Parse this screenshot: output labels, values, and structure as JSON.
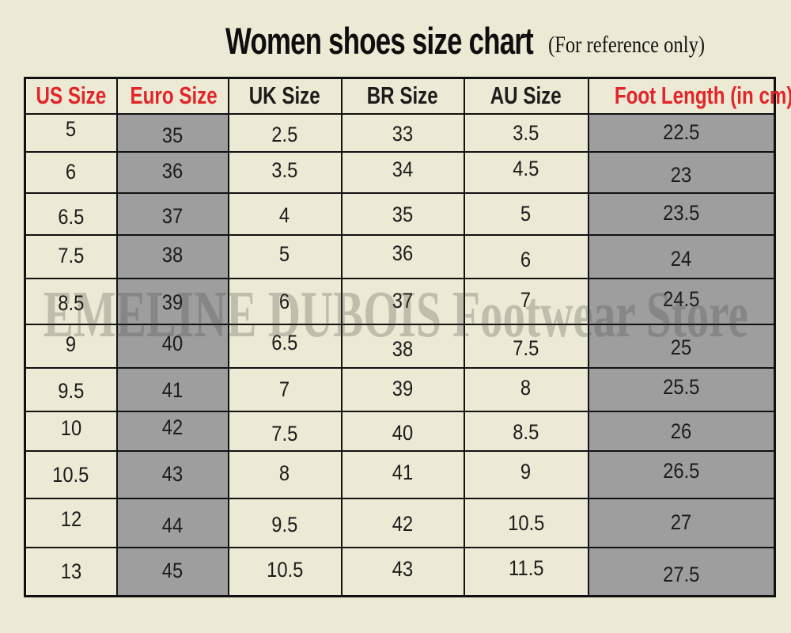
{
  "header": {
    "title": "Women shoes size chart",
    "subtitle": "(For reference only)"
  },
  "watermark": {
    "text": "EMELINE DUBOIS Footwear Store"
  },
  "colors": {
    "background": "#ece9d4",
    "accent_red": "#e2252b",
    "gray_cell": "#9e9e9e",
    "border": "#111111",
    "text": "#1c1c1c"
  },
  "chart_data": {
    "type": "table",
    "title": "Women shoes size chart",
    "subtitle": "(For reference only)",
    "columns": [
      "US Size",
      "Euro Size",
      "UK Size",
      "BR Size",
      "AU Size",
      "Foot Length (in cm)"
    ],
    "red_header_columns": [
      0,
      1,
      5
    ],
    "gray_body_columns": [
      1,
      5
    ],
    "rows": [
      [
        "5",
        "35",
        "2.5",
        "33",
        "3.5",
        "22.5"
      ],
      [
        "6",
        "36",
        "3.5",
        "34",
        "4.5",
        "23"
      ],
      [
        "6.5",
        "37",
        "4",
        "35",
        "5",
        "23.5"
      ],
      [
        "7.5",
        "38",
        "5",
        "36",
        "6",
        "24"
      ],
      [
        "8.5",
        "39",
        "6",
        "37",
        "7",
        "24.5"
      ],
      [
        "9",
        "40",
        "6.5",
        "38",
        "7.5",
        "25"
      ],
      [
        "9.5",
        "41",
        "7",
        "39",
        "8",
        "25.5"
      ],
      [
        "10",
        "42",
        "7.5",
        "40",
        "8.5",
        "26"
      ],
      [
        "10.5",
        "43",
        "8",
        "41",
        "9",
        "26.5"
      ],
      [
        "12",
        "44",
        "9.5",
        "42",
        "10.5",
        "27"
      ],
      [
        "13",
        "45",
        "10.5",
        "43",
        "11.5",
        "27.5"
      ]
    ]
  }
}
